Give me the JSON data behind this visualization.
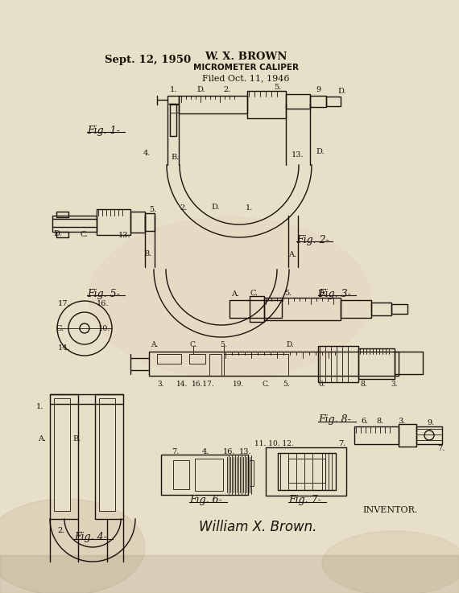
{
  "paper_color": "#e8dfc8",
  "ink_color": "#1a1008",
  "date_text": "Sept. 12, 1950",
  "inventor_name": "W. X. BROWN",
  "patent_title": "MICROMETER CALIPER",
  "filed_text": "Filed Oct. 11, 1946",
  "inventor_label": "INVENTOR.",
  "signature": "William X. Brown.",
  "fig1_label": "Fig. 1.",
  "fig2_label": "Fig. 2.",
  "fig3_label": "Fig. 3.",
  "fig4_label": "Fig. 4.",
  "fig5_label": "Fig. 5.",
  "fig6_label": "Fig. 6.",
  "fig7_label": "Fig. 7.",
  "fig8_label": "Fig. 8."
}
